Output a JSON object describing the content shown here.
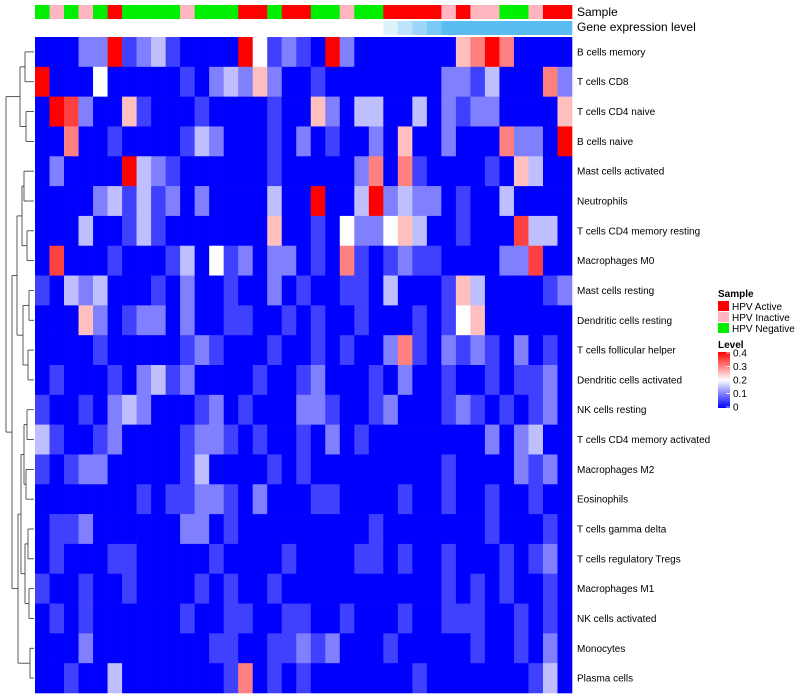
{
  "chart_data": {
    "type": "heatmap",
    "annotation_tracks": [
      "Sample",
      "Gene expression level"
    ],
    "rows": [
      "B cells memory",
      "T cells CD8",
      "T cells CD4 naive",
      "B cells naive",
      "Mast cells activated",
      "Neutrophils",
      "T cells CD4 memory resting",
      "Macrophages M0",
      "Mast cells resting",
      "Dendritic cells resting",
      "T cells follicular helper",
      "Dendritic cells activated",
      "NK cells resting",
      "T cells CD4 memory activated",
      "Macrophages M2",
      "Eosinophils",
      "T cells gamma delta",
      "T cells regulatory  Tregs",
      "Macrophages M1",
      "NK cells activated",
      "Monocytes",
      "Plasma cells"
    ],
    "sample_groups": [
      "HPV Negative",
      "HPV Inactive",
      "HPV Negative",
      "HPV Inactive",
      "HPV Negative",
      "HPV Active",
      "HPV Negative",
      "HPV Negative",
      "HPV Negative",
      "HPV Negative",
      "HPV Inactive",
      "HPV Negative",
      "HPV Negative",
      "HPV Negative",
      "HPV Active",
      "HPV Active",
      "HPV Negative",
      "HPV Active",
      "HPV Active",
      "HPV Negative",
      "HPV Negative",
      "HPV Inactive",
      "HPV Negative",
      "HPV Negative",
      "HPV Active",
      "HPV Active",
      "HPV Active",
      "HPV Active",
      "HPV Inactive",
      "HPV Active",
      "HPV Inactive",
      "HPV Inactive",
      "HPV Negative",
      "HPV Negative",
      "HPV Inactive",
      "HPV Active",
      "HPV Active"
    ],
    "expression_level": [
      0,
      0,
      0,
      0,
      0,
      0,
      0,
      0,
      0,
      0,
      0,
      0,
      0,
      0,
      0,
      0,
      0,
      0,
      0,
      0,
      0,
      0,
      0,
      0,
      0.2,
      0.4,
      0.6,
      0.8,
      1,
      1,
      1,
      1,
      1,
      1,
      1,
      1,
      1
    ],
    "values": [
      [
        0.0,
        0.0,
        0.0,
        0.1,
        0.1,
        0.4,
        0.05,
        0.1,
        0.15,
        0.05,
        0.0,
        0.0,
        0.0,
        0.0,
        0.4,
        0.2,
        0.05,
        0.1,
        0.05,
        0.0,
        0.4,
        0.1,
        0.0,
        0.0,
        0.0,
        0.0,
        0.0,
        0.0,
        0.0,
        0.25,
        0.3,
        0.4,
        0.3,
        0.0,
        0.0,
        0.0,
        0.0
      ],
      [
        0.4,
        0.0,
        0.0,
        0.0,
        0.2,
        0.0,
        0.0,
        0.0,
        0.0,
        0.0,
        0.05,
        0.0,
        0.1,
        0.15,
        0.1,
        0.25,
        0.1,
        0.0,
        0.0,
        0.05,
        0.0,
        0.0,
        0.0,
        0.0,
        0.0,
        0.0,
        0.0,
        0.0,
        0.1,
        0.1,
        0.05,
        0.15,
        0.0,
        0.0,
        0.0,
        0.3,
        0.1
      ],
      [
        0.0,
        0.4,
        0.35,
        0.1,
        0.0,
        0.0,
        0.25,
        0.05,
        0.0,
        0.0,
        0.0,
        0.05,
        0.0,
        0.0,
        0.0,
        0.0,
        0.05,
        0.0,
        0.0,
        0.25,
        0.1,
        0.0,
        0.15,
        0.15,
        0.0,
        0.0,
        0.15,
        0.0,
        0.1,
        0.05,
        0.1,
        0.1,
        0.0,
        0.0,
        0.0,
        0.0,
        0.25
      ],
      [
        0.0,
        0.0,
        0.3,
        0.0,
        0.0,
        0.05,
        0.0,
        0.0,
        0.0,
        0.0,
        0.05,
        0.15,
        0.1,
        0.0,
        0.0,
        0.0,
        0.05,
        0.0,
        0.1,
        0.0,
        0.05,
        0.0,
        0.0,
        0.1,
        0.0,
        0.25,
        0.0,
        0.0,
        0.1,
        0.0,
        0.0,
        0.0,
        0.3,
        0.1,
        0.1,
        0.0,
        0.4
      ],
      [
        0.0,
        0.1,
        0.0,
        0.0,
        0.0,
        0.0,
        0.4,
        0.15,
        0.1,
        0.05,
        0.0,
        0.0,
        0.0,
        0.0,
        0.0,
        0.0,
        0.05,
        0.0,
        0.0,
        0.0,
        0.0,
        0.0,
        0.1,
        0.3,
        0.0,
        0.3,
        0.05,
        0.0,
        0.0,
        0.0,
        0.0,
        0.05,
        0.0,
        0.25,
        0.15,
        0.0,
        0.0
      ],
      [
        0.0,
        0.0,
        0.0,
        0.0,
        0.1,
        0.15,
        0.05,
        0.15,
        0.05,
        0.1,
        0.0,
        0.1,
        0.0,
        0.0,
        0.0,
        0.0,
        0.15,
        0.0,
        0.0,
        0.4,
        0.0,
        0.0,
        0.15,
        0.4,
        0.1,
        0.15,
        0.1,
        0.1,
        0.0,
        0.05,
        0.0,
        0.0,
        0.15,
        0.0,
        0.0,
        0.0,
        0.0
      ],
      [
        0.0,
        0.0,
        0.0,
        0.15,
        0.0,
        0.0,
        0.05,
        0.15,
        0.05,
        0.0,
        0.0,
        0.0,
        0.0,
        0.0,
        0.0,
        0.0,
        0.25,
        0.0,
        0.0,
        0.05,
        0.0,
        0.2,
        0.1,
        0.1,
        0.2,
        0.25,
        0.15,
        0.0,
        0.0,
        0.05,
        0.0,
        0.0,
        0.0,
        0.35,
        0.15,
        0.15,
        0.0
      ],
      [
        0.0,
        0.35,
        0.0,
        0.0,
        0.0,
        0.05,
        0.0,
        0.0,
        0.0,
        0.05,
        0.15,
        0.0,
        0.2,
        0.05,
        0.1,
        0.0,
        0.1,
        0.1,
        0.0,
        0.05,
        0.0,
        0.3,
        0.05,
        0.0,
        0.05,
        0.1,
        0.05,
        0.05,
        0.0,
        0.0,
        0.0,
        0.0,
        0.1,
        0.1,
        0.35,
        0.0,
        0.0
      ],
      [
        0.05,
        0.0,
        0.15,
        0.1,
        0.15,
        0.0,
        0.0,
        0.0,
        0.05,
        0.0,
        0.1,
        0.0,
        0.0,
        0.05,
        0.0,
        0.0,
        0.1,
        0.0,
        0.05,
        0.0,
        0.0,
        0.05,
        0.05,
        0.0,
        0.15,
        0.0,
        0.0,
        0.0,
        0.05,
        0.25,
        0.15,
        0.0,
        0.0,
        0.0,
        0.0,
        0.05,
        0.1
      ],
      [
        0.0,
        0.0,
        0.0,
        0.25,
        0.1,
        0.0,
        0.05,
        0.1,
        0.1,
        0.0,
        0.1,
        0.0,
        0.0,
        0.05,
        0.05,
        0.0,
        0.0,
        0.05,
        0.0,
        0.05,
        0.0,
        0.0,
        0.05,
        0.0,
        0.0,
        0.0,
        0.05,
        0.0,
        0.05,
        0.2,
        0.25,
        0.0,
        0.0,
        0.0,
        0.0,
        0.0,
        0.0
      ],
      [
        0.0,
        0.0,
        0.0,
        0.0,
        0.05,
        0.0,
        0.0,
        0.0,
        0.0,
        0.0,
        0.05,
        0.1,
        0.05,
        0.0,
        0.0,
        0.0,
        0.05,
        0.0,
        0.0,
        0.05,
        0.0,
        0.05,
        0.0,
        0.0,
        0.1,
        0.3,
        0.05,
        0.0,
        0.1,
        0.05,
        0.1,
        0.05,
        0.0,
        0.1,
        0.0,
        0.05,
        0.0
      ],
      [
        0.0,
        0.05,
        0.0,
        0.0,
        0.0,
        0.05,
        0.0,
        0.1,
        0.15,
        0.05,
        0.1,
        0.0,
        0.0,
        0.0,
        0.0,
        0.05,
        0.0,
        0.0,
        0.05,
        0.1,
        0.0,
        0.0,
        0.0,
        0.05,
        0.0,
        0.1,
        0.0,
        0.0,
        0.05,
        0.0,
        0.0,
        0.05,
        0.0,
        0.05,
        0.05,
        0.1,
        0.0
      ],
      [
        0.05,
        0.0,
        0.0,
        0.05,
        0.0,
        0.1,
        0.15,
        0.1,
        0.0,
        0.0,
        0.0,
        0.05,
        0.1,
        0.0,
        0.05,
        0.0,
        0.0,
        0.0,
        0.1,
        0.1,
        0.05,
        0.0,
        0.0,
        0.05,
        0.1,
        0.0,
        0.0,
        0.0,
        0.05,
        0.1,
        0.05,
        0.0,
        0.05,
        0.0,
        0.05,
        0.1,
        0.0
      ],
      [
        0.15,
        0.05,
        0.0,
        0.0,
        0.05,
        0.1,
        0.0,
        0.0,
        0.0,
        0.0,
        0.05,
        0.1,
        0.1,
        0.05,
        0.0,
        0.05,
        0.0,
        0.0,
        0.05,
        0.0,
        0.1,
        0.0,
        0.05,
        0.0,
        0.0,
        0.0,
        0.0,
        0.0,
        0.0,
        0.0,
        0.0,
        0.1,
        0.0,
        0.1,
        0.15,
        0.0,
        0.0
      ],
      [
        0.05,
        0.0,
        0.05,
        0.1,
        0.1,
        0.0,
        0.0,
        0.0,
        0.0,
        0.0,
        0.05,
        0.15,
        0.0,
        0.0,
        0.0,
        0.0,
        0.05,
        0.0,
        0.05,
        0.0,
        0.0,
        0.0,
        0.0,
        0.0,
        0.0,
        0.0,
        0.0,
        0.0,
        0.05,
        0.0,
        0.0,
        0.0,
        0.0,
        0.1,
        0.05,
        0.1,
        0.0
      ],
      [
        0.0,
        0.0,
        0.0,
        0.0,
        0.0,
        0.0,
        0.0,
        0.05,
        0.0,
        0.05,
        0.05,
        0.1,
        0.1,
        0.05,
        0.0,
        0.1,
        0.0,
        0.0,
        0.0,
        0.05,
        0.05,
        0.0,
        0.0,
        0.0,
        0.0,
        0.05,
        0.0,
        0.0,
        0.05,
        0.0,
        0.0,
        0.05,
        0.0,
        0.0,
        0.05,
        0.0,
        0.0
      ],
      [
        0.0,
        0.05,
        0.05,
        0.1,
        0.0,
        0.0,
        0.0,
        0.0,
        0.0,
        0.0,
        0.1,
        0.1,
        0.0,
        0.05,
        0.0,
        0.0,
        0.0,
        0.0,
        0.0,
        0.0,
        0.0,
        0.0,
        0.0,
        0.05,
        0.0,
        0.0,
        0.0,
        0.0,
        0.0,
        0.0,
        0.0,
        0.05,
        0.0,
        0.0,
        0.0,
        0.05,
        0.0
      ],
      [
        0.0,
        0.05,
        0.0,
        0.0,
        0.0,
        0.05,
        0.05,
        0.0,
        0.0,
        0.0,
        0.0,
        0.0,
        0.05,
        0.0,
        0.0,
        0.0,
        0.0,
        0.05,
        0.0,
        0.0,
        0.0,
        0.0,
        0.05,
        0.05,
        0.0,
        0.05,
        0.0,
        0.0,
        0.05,
        0.0,
        0.0,
        0.0,
        0.05,
        0.0,
        0.05,
        0.1,
        0.0
      ],
      [
        0.05,
        0.0,
        0.0,
        0.05,
        0.0,
        0.0,
        0.05,
        0.0,
        0.0,
        0.0,
        0.0,
        0.05,
        0.0,
        0.05,
        0.0,
        0.0,
        0.05,
        0.0,
        0.0,
        0.0,
        0.0,
        0.0,
        0.0,
        0.0,
        0.0,
        0.0,
        0.0,
        0.0,
        0.05,
        0.0,
        0.05,
        0.0,
        0.05,
        0.0,
        0.0,
        0.05,
        0.0
      ],
      [
        0.0,
        0.05,
        0.0,
        0.05,
        0.0,
        0.0,
        0.0,
        0.0,
        0.0,
        0.0,
        0.05,
        0.0,
        0.0,
        0.05,
        0.05,
        0.0,
        0.0,
        0.05,
        0.05,
        0.0,
        0.0,
        0.05,
        0.0,
        0.0,
        0.0,
        0.05,
        0.0,
        0.0,
        0.05,
        0.05,
        0.05,
        0.0,
        0.0,
        0.05,
        0.0,
        0.05,
        0.0
      ],
      [
        0.0,
        0.0,
        0.0,
        0.1,
        0.0,
        0.0,
        0.0,
        0.0,
        0.0,
        0.0,
        0.0,
        0.0,
        0.05,
        0.05,
        0.0,
        0.0,
        0.05,
        0.05,
        0.1,
        0.05,
        0.1,
        0.0,
        0.0,
        0.0,
        0.05,
        0.0,
        0.0,
        0.0,
        0.0,
        0.0,
        0.05,
        0.0,
        0.0,
        0.05,
        0.0,
        0.1,
        0.0
      ],
      [
        0.0,
        0.0,
        0.05,
        0.0,
        0.0,
        0.15,
        0.0,
        0.0,
        0.0,
        0.0,
        0.0,
        0.0,
        0.0,
        0.05,
        0.3,
        0.0,
        0.05,
        0.0,
        0.05,
        0.0,
        0.0,
        0.0,
        0.0,
        0.0,
        0.0,
        0.0,
        0.05,
        0.0,
        0.0,
        0.0,
        0.0,
        0.0,
        0.0,
        0.0,
        0.05,
        0.15,
        0.0
      ]
    ],
    "sample_legend": {
      "title": "Sample",
      "entries": [
        {
          "label": "HPV Active",
          "color": "#ff0000"
        },
        {
          "label": "HPV Inactive",
          "color": "#ffb6c1"
        },
        {
          "label": "HPV Negative",
          "color": "#00ee00"
        }
      ]
    },
    "level_legend": {
      "title": "Level",
      "ticks": [
        "0.4",
        "0.3",
        "0.2",
        "0.1",
        "0"
      ],
      "scale": [
        0,
        0.4
      ]
    },
    "colors": {
      "low": "#0000ff",
      "mid": "#ffffff",
      "high": "#ff0000",
      "expression_low": "#ffffff",
      "expression_high": "#5bbcf2"
    }
  }
}
